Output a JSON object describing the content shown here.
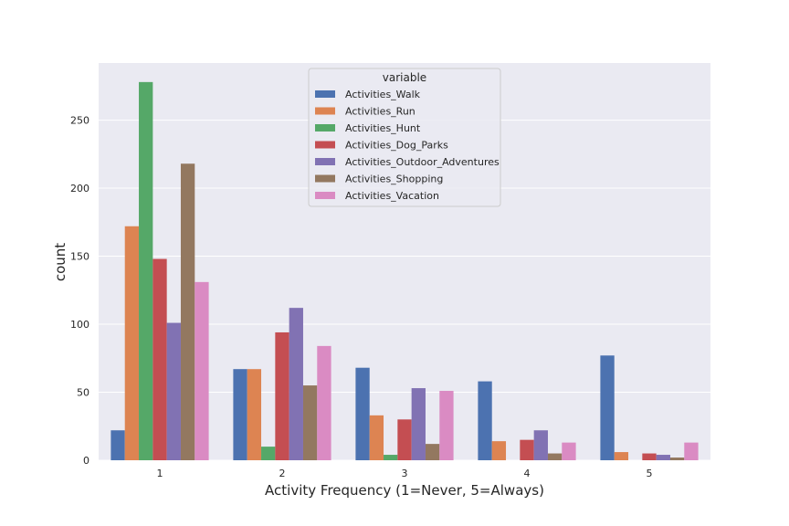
{
  "chart_data": {
    "type": "bar",
    "title": "",
    "xlabel": "Activity Frequency (1=Never, 5=Always)",
    "ylabel": "count",
    "categories": [
      "1",
      "2",
      "3",
      "4",
      "5"
    ],
    "ylim": [
      0,
      292
    ],
    "yticks": [
      0,
      50,
      100,
      150,
      200,
      250
    ],
    "grid": true,
    "legend": {
      "title": "variable",
      "placement": "top-center"
    },
    "series": [
      {
        "name": "Activities_Walk",
        "color": "#4c72b0",
        "values": [
          22,
          67,
          68,
          58,
          77
        ]
      },
      {
        "name": "Activities_Run",
        "color": "#dd8452",
        "values": [
          172,
          67,
          33,
          14,
          6
        ]
      },
      {
        "name": "Activities_Hunt",
        "color": "#55a868",
        "values": [
          278,
          10,
          4,
          0,
          0
        ]
      },
      {
        "name": "Activities_Dog_Parks",
        "color": "#c44e52",
        "values": [
          148,
          94,
          30,
          15,
          5
        ]
      },
      {
        "name": "Activities_Outdoor_Adventures",
        "color": "#8172b3",
        "values": [
          101,
          112,
          53,
          22,
          4
        ]
      },
      {
        "name": "Activities_Shopping",
        "color": "#937860",
        "values": [
          218,
          55,
          12,
          5,
          2
        ]
      },
      {
        "name": "Activities_Vacation",
        "color": "#da8bc3",
        "values": [
          131,
          84,
          51,
          13,
          13
        ]
      }
    ]
  }
}
